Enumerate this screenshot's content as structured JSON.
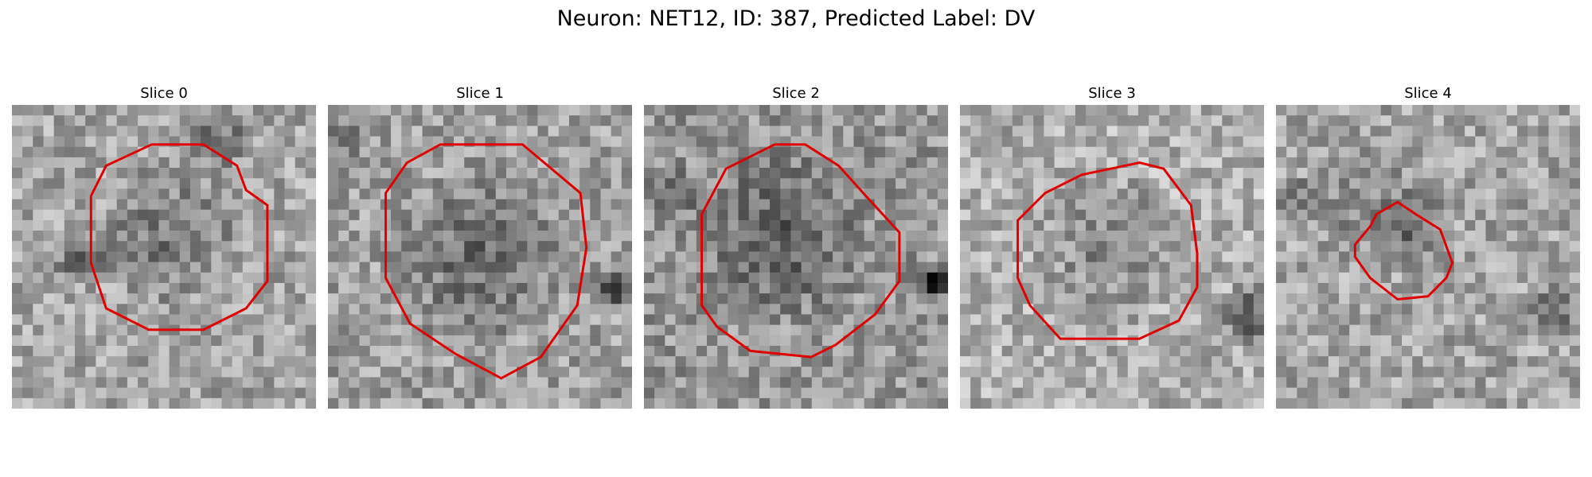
{
  "figure": {
    "title": "Neuron: NET12, ID: 387, Predicted Label: DV"
  },
  "colors": {
    "contour": "#e00000",
    "background": "#ffffff"
  },
  "panels": [
    {
      "title": "Slice 0"
    },
    {
      "title": "Slice 1"
    },
    {
      "title": "Slice 2"
    },
    {
      "title": "Slice 3"
    },
    {
      "title": "Slice 4"
    }
  ]
}
